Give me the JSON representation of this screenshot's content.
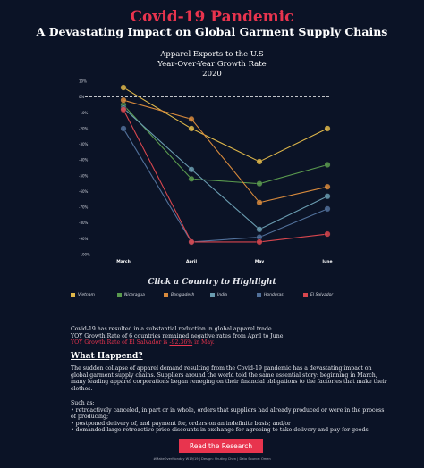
{
  "header": {
    "title": "Covid-19 Pandemic",
    "subtitle": "A Devastating Impact on Global Garment Supply Chains"
  },
  "chart_data": {
    "type": "line",
    "title_lines": [
      "Apparel Exports to the U.S",
      "Year-Over-Year Growth Rate",
      "2020"
    ],
    "categories": [
      "March",
      "April",
      "May",
      "June"
    ],
    "y_ticks": [
      "10%",
      "0%",
      "-10%",
      "-20%",
      "-30%",
      "-40%",
      "-50%",
      "-60%",
      "-70%",
      "-80%",
      "-90%",
      "-100%"
    ],
    "ylim": [
      -100,
      10
    ],
    "zero_line": true,
    "series": [
      {
        "name": "Vietnam",
        "color": "#e0b84a",
        "values": [
          6,
          -20,
          -41,
          -20
        ]
      },
      {
        "name": "Nicaragua",
        "color": "#5a9a4e",
        "values": [
          -5,
          -52,
          -55,
          -43
        ]
      },
      {
        "name": "Bangladesh",
        "color": "#d88a3c",
        "values": [
          -2,
          -14,
          -67,
          -57
        ]
      },
      {
        "name": "India",
        "color": "#6a9cb0",
        "values": [
          -7,
          -46,
          -84,
          -63
        ]
      },
      {
        "name": "Honduras",
        "color": "#51709a",
        "values": [
          -20,
          -92,
          -89,
          -71
        ]
      },
      {
        "name": "El Salvador",
        "color": "#d8464e",
        "values": [
          -8,
          -92,
          -92,
          -87
        ]
      }
    ]
  },
  "highlight_prompt": "Click a Country to Highlight",
  "summary": {
    "line1": "Covid-19 has resulted in a substantial reduction in global apparel trade.",
    "line2": "YOY Growth Rate of  6 countries remained negative rates from April to June.",
    "line3_prefix": "YOY Growth Rate of  El Salvador is ",
    "line3_value": "-92.36%",
    "line3_suffix": " in May."
  },
  "what_happened": {
    "heading": "What Happend?",
    "paragraph": "The sudden collapse of apparel demand resulting from the Covid-19 pandemic has a devastating impact on global garment supply chains. Suppliers around the world told the same essential story: beginning in March, many leading apparel corporations began reneging on their financial obligations to the factories that make their clothes.",
    "such_as": "Such as:",
    "bullets": [
      "• retroactively canceled, in part or in whole, orders that suppliers had already produced or were in the process of producing;",
      "• postponed delivery of, and payment for, orders on an indefinite basis; and/or",
      "• demanded large retroactive price discounts in exchange for agreeing to take delivery and pay for goods."
    ]
  },
  "button_label": "Read the Research",
  "credits": "#MakeOverMonday W19/19 | Design: Shuting Chen | Data Source: Omen"
}
